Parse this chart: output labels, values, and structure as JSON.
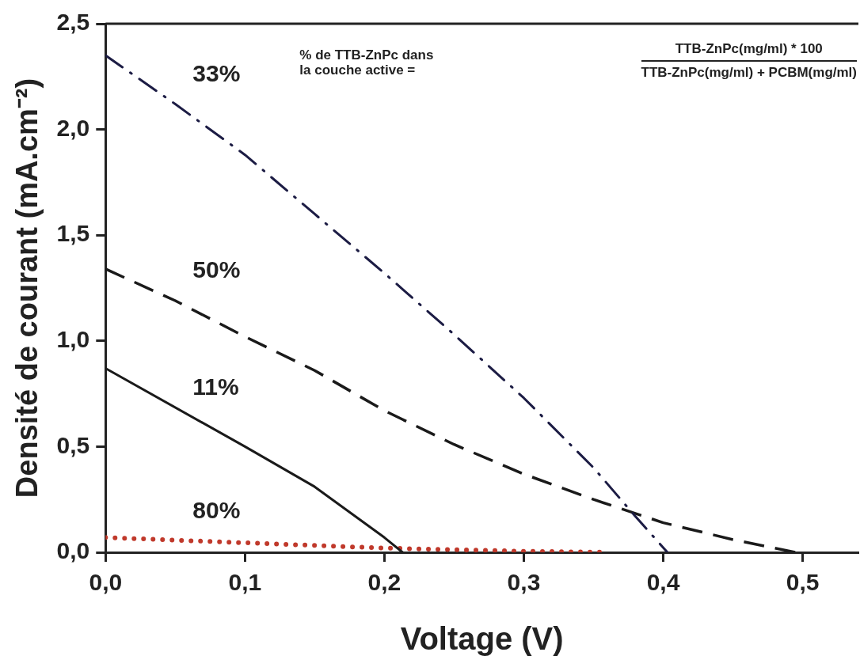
{
  "chart_data": {
    "type": "line",
    "xlabel": "Voltage (V)",
    "ylabel": "Densité de courant (mA.cm⁻²)",
    "annotations": [
      "% de TTB-ZnPc dans\nla couche active =",
      "TTB-ZnPc(mg/ml) * 100",
      "TTB-ZnPc(mg/ml) + PCBM(mg/ml)"
    ],
    "xlim": [
      0,
      0.54
    ],
    "xticks": [
      {
        "value": 0,
        "label": "0,0"
      },
      {
        "value": 0.1,
        "label": "0,1"
      },
      {
        "value": 0.2,
        "label": "0,2"
      },
      {
        "value": 0.3,
        "label": "0,3"
      },
      {
        "value": 0.4,
        "label": "0,4"
      },
      {
        "value": 0.5,
        "label": "0,5"
      }
    ],
    "ylim": [
      0,
      2.5
    ],
    "yticks": [
      {
        "value": 0,
        "label": "0,0"
      },
      {
        "value": 0.5,
        "label": "0,5"
      },
      {
        "value": 1,
        "label": "1,0"
      },
      {
        "value": 1.5,
        "label": "1,5"
      },
      {
        "value": 2,
        "label": "2,0"
      },
      {
        "value": 2.5,
        "label": "2,5"
      }
    ],
    "grid": false,
    "legend": false,
    "marker": "none",
    "series": [
      {
        "name": "33%",
        "color": "#1c1c44",
        "line_style": "dashdot",
        "x": [
          0,
          0.05,
          0.1,
          0.15,
          0.2,
          0.25,
          0.3,
          0.35,
          0.38,
          0.403
        ],
        "values": [
          2.35,
          2.12,
          1.88,
          1.6,
          1.32,
          1.03,
          0.73,
          0.4,
          0.17,
          0
        ]
      },
      {
        "name": "50%",
        "color": "#1a1a1a",
        "line_style": "dashed",
        "x": [
          0,
          0.05,
          0.1,
          0.15,
          0.2,
          0.25,
          0.3,
          0.35,
          0.4,
          0.45,
          0.495
        ],
        "values": [
          1.34,
          1.19,
          1.02,
          0.86,
          0.67,
          0.51,
          0.37,
          0.25,
          0.14,
          0.06,
          0
        ]
      },
      {
        "name": "11%",
        "color": "#1a1a1a",
        "line_style": "solid",
        "x": [
          0,
          0.1,
          0.15,
          0.2,
          0.213
        ],
        "values": [
          0.87,
          0.5,
          0.31,
          0.07,
          0
        ]
      },
      {
        "name": "80%",
        "color": "#c0392b",
        "line_style": "dotted",
        "x": [
          0,
          0.1,
          0.2,
          0.3,
          0.36
        ],
        "values": [
          0.07,
          0.045,
          0.02,
          0.005,
          0
        ]
      }
    ]
  }
}
